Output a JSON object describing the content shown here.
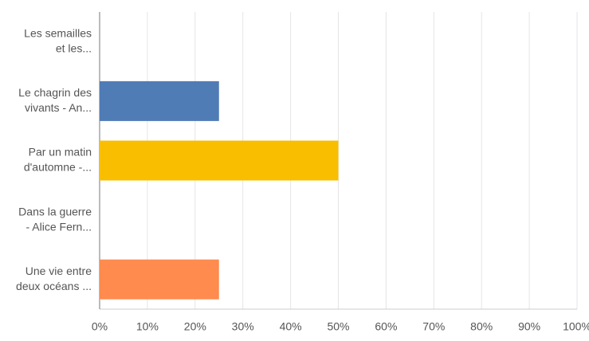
{
  "chart_data": {
    "type": "bar",
    "orientation": "horizontal",
    "categories": [
      [
        "Les semailles",
        "et les..."
      ],
      [
        "Le chagrin des",
        "vivants - An..."
      ],
      [
        "Par un matin",
        "d'automne -..."
      ],
      [
        "Dans la guerre",
        "- Alice Fern..."
      ],
      [
        "Une vie entre",
        "deux océans ..."
      ]
    ],
    "values": [
      0,
      25,
      50,
      0,
      25
    ],
    "colors": [
      "#6bc8cd",
      "#507cb6",
      "#f9be00",
      "#7c6fb3",
      "#ff8b4f"
    ],
    "xlim": [
      0,
      100
    ],
    "xticks": [
      {
        "value": 0,
        "label": "0%"
      },
      {
        "value": 10,
        "label": "10%"
      },
      {
        "value": 20,
        "label": "20%"
      },
      {
        "value": 30,
        "label": "30%"
      },
      {
        "value": 40,
        "label": "40%"
      },
      {
        "value": 50,
        "label": "50%"
      },
      {
        "value": 60,
        "label": "60%"
      },
      {
        "value": 70,
        "label": "70%"
      },
      {
        "value": 80,
        "label": "80%"
      },
      {
        "value": 90,
        "label": "90%"
      },
      {
        "value": 100,
        "label": "100%"
      }
    ],
    "grid": true
  }
}
